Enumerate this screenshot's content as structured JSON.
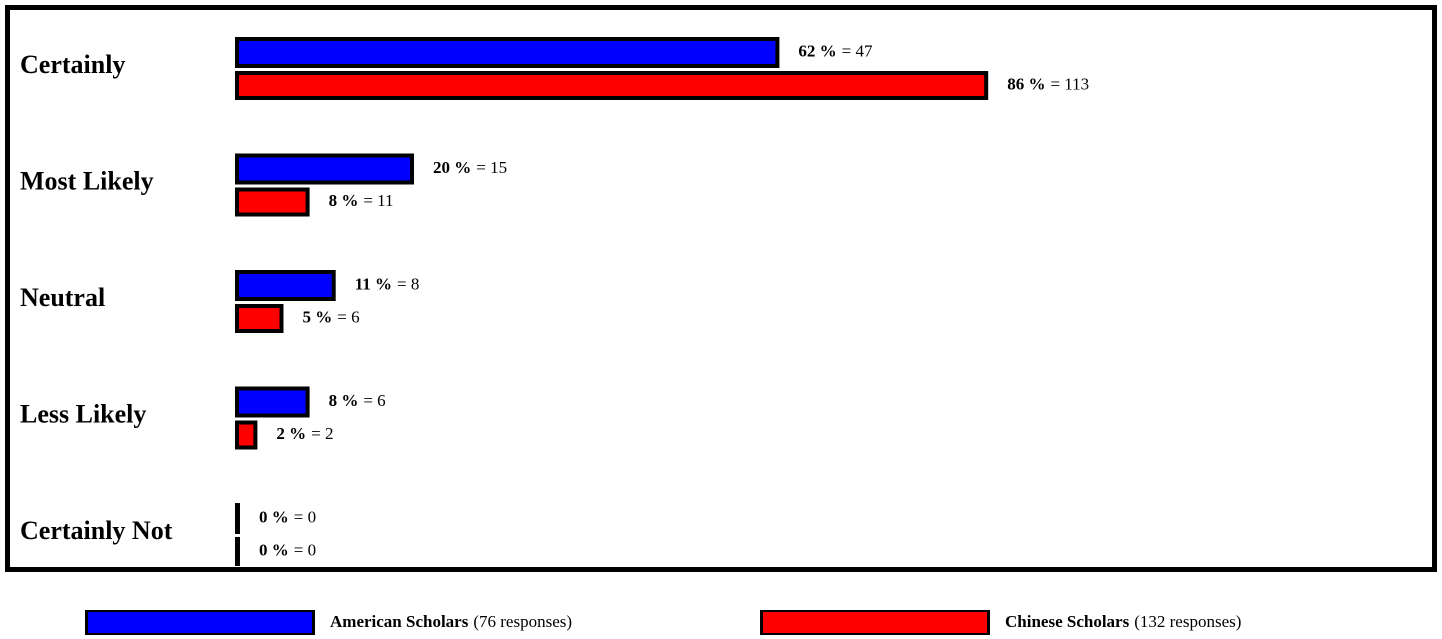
{
  "chart_data": {
    "type": "bar",
    "orientation": "horizontal",
    "categories": [
      "Certainly",
      "Most Likely",
      "Neutral",
      "Less Likely",
      "Certainly Not"
    ],
    "series": [
      {
        "name": "American Scholars",
        "note": "(76 responses)",
        "color": "#0000ff",
        "values": [
          62,
          20,
          11,
          8,
          0
        ],
        "value_labels": [
          "62 %",
          "20 %",
          "11 %",
          "8 %",
          "0 %"
        ],
        "counts": [
          47,
          15,
          8,
          6,
          0
        ],
        "count_labels": [
          "= 47",
          "= 15",
          "= 8",
          "= 6",
          "= 0"
        ]
      },
      {
        "name": "Chinese Scholars",
        "note": "(132 responses)",
        "color": "#ff0000",
        "values": [
          86,
          8,
          5,
          2,
          0
        ],
        "value_labels": [
          "86 %",
          "8 %",
          "5 %",
          "2 %",
          "0 %"
        ],
        "counts": [
          113,
          11,
          6,
          2,
          0
        ],
        "count_labels": [
          "= 113",
          "= 11",
          "= 6",
          "= 2",
          "= 0"
        ]
      }
    ]
  }
}
